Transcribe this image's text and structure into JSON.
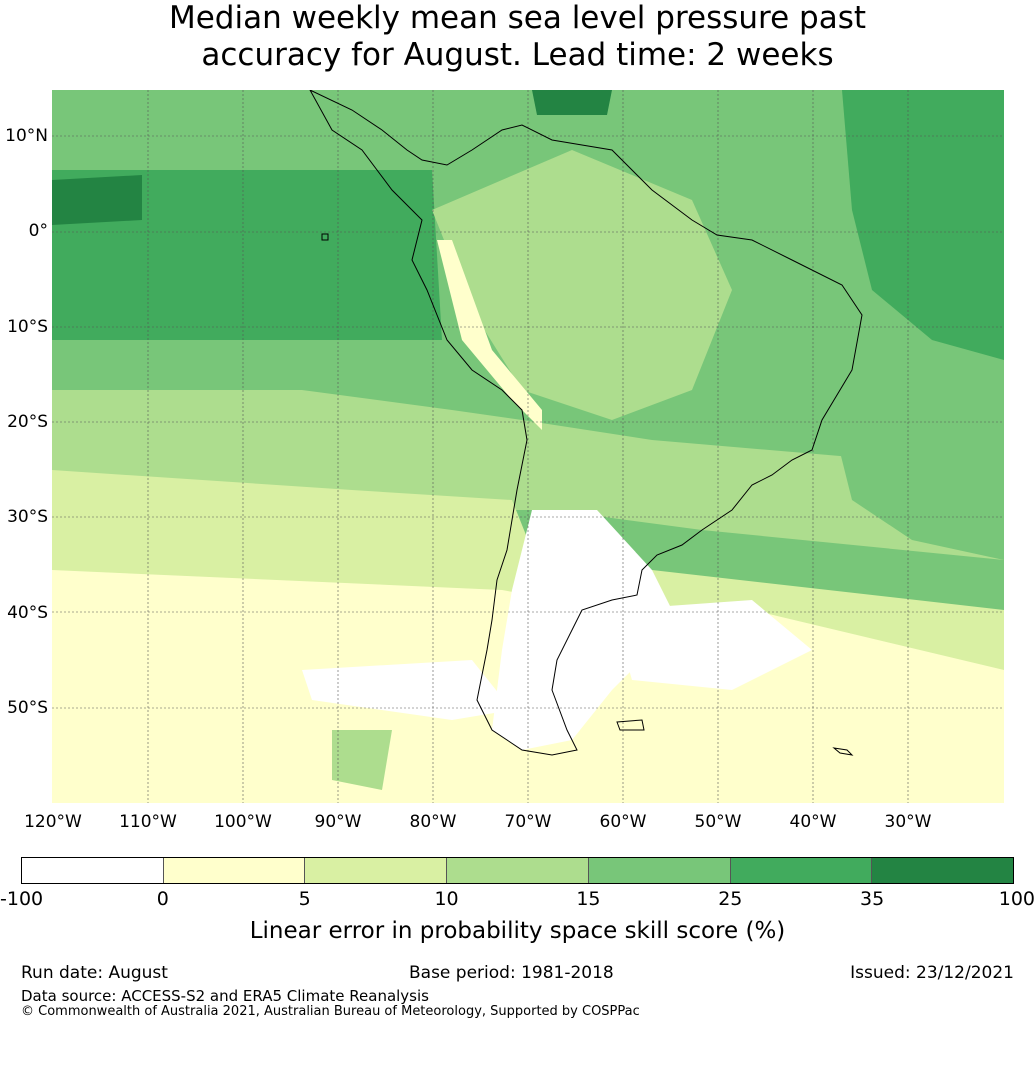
{
  "title_line1": "Median weekly mean sea level pressure past",
  "title_line2": "accuracy for August. Lead time: 2 weeks",
  "lat_labels": [
    "10°N",
    "0°",
    "10°S",
    "20°S",
    "30°S",
    "40°S",
    "50°S"
  ],
  "lon_labels": [
    "120°W",
    "110°W",
    "100°W",
    "90°W",
    "80°W",
    "70°W",
    "60°W",
    "50°W",
    "40°W",
    "30°W"
  ],
  "colorbar": {
    "ticks": [
      "-100",
      "0",
      "5",
      "10",
      "15",
      "25",
      "35",
      "100"
    ],
    "colors": [
      "#ffffff",
      "#ffffcc",
      "#d9f0a3",
      "#addd8e",
      "#78c679",
      "#41ab5d",
      "#238443"
    ],
    "label": "Linear error in probability space skill score (%)"
  },
  "footer": {
    "run_date": "Run date: August",
    "base_period": "Base period: 1981-2018",
    "issued": "Issued: 23/12/2021",
    "data_source": "Data source: ACCESS-S2 and ERA5 Climate Reanalysis",
    "copyright": "© Commonwealth of Australia 2021, Australian Bureau of Meteorology, Supported by COSPPac"
  }
}
